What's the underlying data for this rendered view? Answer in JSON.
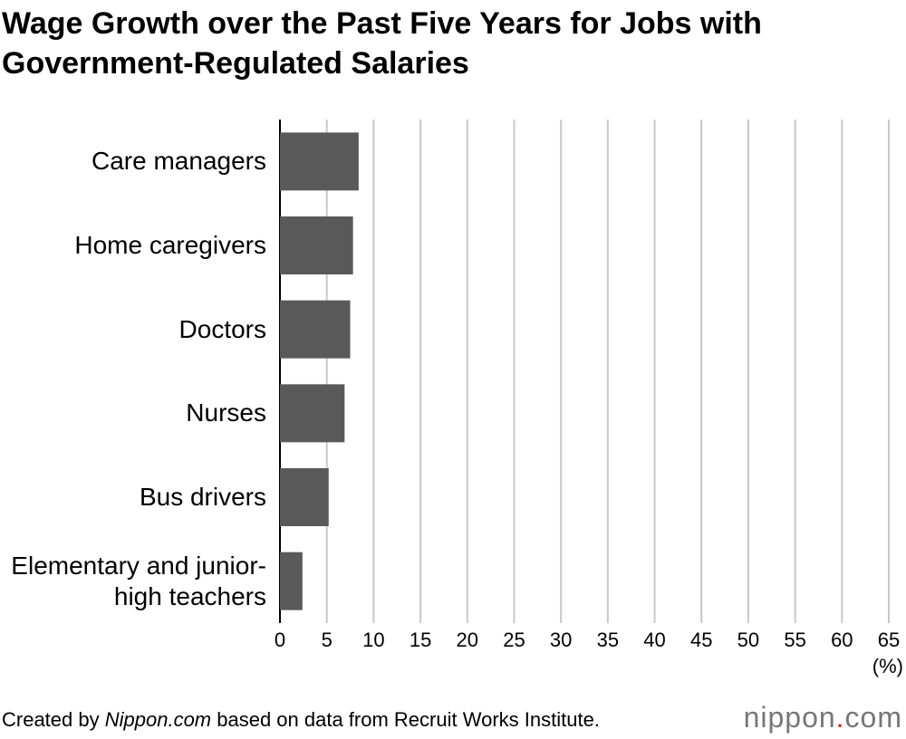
{
  "chart_data": {
    "type": "barh",
    "title": "Wage Growth over the Past Five Years for Jobs with Government-Regulated Salaries",
    "categories": [
      "Care managers",
      "Home caregivers",
      "Doctors",
      "Nurses",
      "Bus drivers",
      "Elementary and junior-high teachers"
    ],
    "values": [
      8.4,
      7.8,
      7.5,
      6.9,
      5.2,
      2.4
    ],
    "color": "#595959",
    "xlim": [
      0,
      65
    ],
    "xticks": [
      0,
      5,
      10,
      15,
      20,
      25,
      30,
      35,
      40,
      45,
      50,
      55,
      60,
      65
    ],
    "xlabel": "(%)",
    "grid": true
  },
  "footer": {
    "prefix": "Created by ",
    "site": "Nippon.com",
    "suffix": " based on data from Recruit Works Institute."
  },
  "logo": {
    "name": "nippon",
    "dot": ".",
    "tld": "com"
  }
}
